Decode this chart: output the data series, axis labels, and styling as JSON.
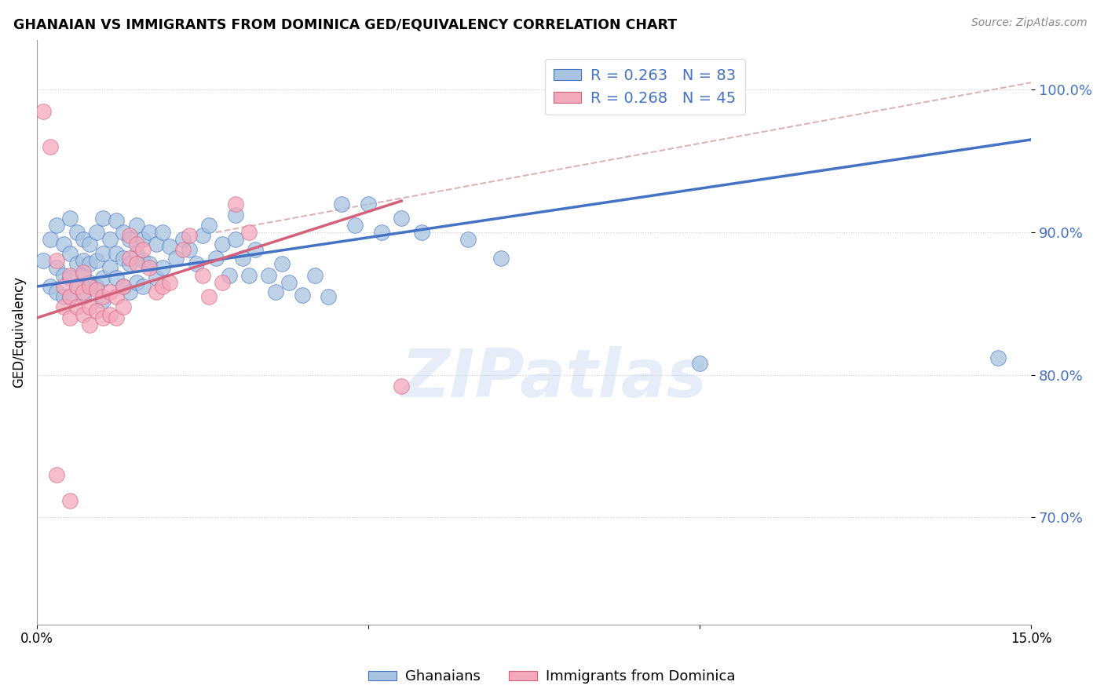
{
  "title": "GHANAIAN VS IMMIGRANTS FROM DOMINICA GED/EQUIVALENCY CORRELATION CHART",
  "source": "Source: ZipAtlas.com",
  "ylabel": "GED/Equivalency",
  "xlim": [
    0.0,
    0.15
  ],
  "ylim": [
    0.625,
    1.035
  ],
  "watermark": "ZIPatlas",
  "blue_color": "#a8c4e0",
  "pink_color": "#f4a8bc",
  "blue_line_color": "#4472c4",
  "pink_line_color": "#d4607a",
  "dashed_color": "#d4a0a8",
  "blue_line": {
    "x0": 0.0,
    "y0": 0.862,
    "x1": 0.15,
    "y1": 0.965
  },
  "pink_line": {
    "x0": 0.0,
    "y0": 0.84,
    "x1": 0.055,
    "y1": 0.922
  },
  "dashed_line": {
    "x0": 0.027,
    "y0": 0.9,
    "x1": 0.15,
    "y1": 1.005
  },
  "scatter_blue": [
    [
      0.001,
      0.88
    ],
    [
      0.002,
      0.895
    ],
    [
      0.002,
      0.862
    ],
    [
      0.003,
      0.905
    ],
    [
      0.003,
      0.875
    ],
    [
      0.003,
      0.858
    ],
    [
      0.004,
      0.892
    ],
    [
      0.004,
      0.87
    ],
    [
      0.004,
      0.855
    ],
    [
      0.005,
      0.91
    ],
    [
      0.005,
      0.885
    ],
    [
      0.005,
      0.868
    ],
    [
      0.005,
      0.855
    ],
    [
      0.006,
      0.9
    ],
    [
      0.006,
      0.878
    ],
    [
      0.006,
      0.862
    ],
    [
      0.007,
      0.895
    ],
    [
      0.007,
      0.88
    ],
    [
      0.007,
      0.87
    ],
    [
      0.007,
      0.855
    ],
    [
      0.008,
      0.892
    ],
    [
      0.008,
      0.878
    ],
    [
      0.008,
      0.865
    ],
    [
      0.009,
      0.9
    ],
    [
      0.009,
      0.88
    ],
    [
      0.009,
      0.862
    ],
    [
      0.01,
      0.91
    ],
    [
      0.01,
      0.885
    ],
    [
      0.01,
      0.868
    ],
    [
      0.01,
      0.852
    ],
    [
      0.011,
      0.895
    ],
    [
      0.011,
      0.875
    ],
    [
      0.012,
      0.908
    ],
    [
      0.012,
      0.885
    ],
    [
      0.012,
      0.868
    ],
    [
      0.013,
      0.9
    ],
    [
      0.013,
      0.882
    ],
    [
      0.013,
      0.862
    ],
    [
      0.014,
      0.895
    ],
    [
      0.014,
      0.878
    ],
    [
      0.014,
      0.858
    ],
    [
      0.015,
      0.905
    ],
    [
      0.015,
      0.885
    ],
    [
      0.015,
      0.865
    ],
    [
      0.016,
      0.895
    ],
    [
      0.016,
      0.88
    ],
    [
      0.016,
      0.862
    ],
    [
      0.017,
      0.9
    ],
    [
      0.017,
      0.878
    ],
    [
      0.018,
      0.892
    ],
    [
      0.018,
      0.868
    ],
    [
      0.019,
      0.9
    ],
    [
      0.019,
      0.875
    ],
    [
      0.02,
      0.89
    ],
    [
      0.021,
      0.882
    ],
    [
      0.022,
      0.895
    ],
    [
      0.023,
      0.888
    ],
    [
      0.024,
      0.878
    ],
    [
      0.025,
      0.898
    ],
    [
      0.026,
      0.905
    ],
    [
      0.027,
      0.882
    ],
    [
      0.028,
      0.892
    ],
    [
      0.029,
      0.87
    ],
    [
      0.03,
      0.912
    ],
    [
      0.03,
      0.895
    ],
    [
      0.031,
      0.882
    ],
    [
      0.032,
      0.87
    ],
    [
      0.033,
      0.888
    ],
    [
      0.035,
      0.87
    ],
    [
      0.036,
      0.858
    ],
    [
      0.037,
      0.878
    ],
    [
      0.038,
      0.865
    ],
    [
      0.04,
      0.856
    ],
    [
      0.042,
      0.87
    ],
    [
      0.044,
      0.855
    ],
    [
      0.046,
      0.92
    ],
    [
      0.048,
      0.905
    ],
    [
      0.05,
      0.92
    ],
    [
      0.052,
      0.9
    ],
    [
      0.055,
      0.91
    ],
    [
      0.058,
      0.9
    ],
    [
      0.065,
      0.895
    ],
    [
      0.07,
      0.882
    ],
    [
      0.1,
      0.808
    ],
    [
      0.145,
      0.812
    ]
  ],
  "scatter_pink": [
    [
      0.001,
      0.985
    ],
    [
      0.002,
      0.96
    ],
    [
      0.003,
      0.88
    ],
    [
      0.004,
      0.862
    ],
    [
      0.004,
      0.848
    ],
    [
      0.005,
      0.87
    ],
    [
      0.005,
      0.855
    ],
    [
      0.005,
      0.84
    ],
    [
      0.006,
      0.862
    ],
    [
      0.006,
      0.848
    ],
    [
      0.007,
      0.872
    ],
    [
      0.007,
      0.858
    ],
    [
      0.007,
      0.842
    ],
    [
      0.008,
      0.862
    ],
    [
      0.008,
      0.848
    ],
    [
      0.008,
      0.835
    ],
    [
      0.009,
      0.86
    ],
    [
      0.009,
      0.845
    ],
    [
      0.01,
      0.855
    ],
    [
      0.01,
      0.84
    ],
    [
      0.011,
      0.858
    ],
    [
      0.011,
      0.842
    ],
    [
      0.012,
      0.855
    ],
    [
      0.012,
      0.84
    ],
    [
      0.013,
      0.862
    ],
    [
      0.013,
      0.848
    ],
    [
      0.014,
      0.898
    ],
    [
      0.014,
      0.882
    ],
    [
      0.015,
      0.892
    ],
    [
      0.015,
      0.878
    ],
    [
      0.016,
      0.888
    ],
    [
      0.017,
      0.875
    ],
    [
      0.018,
      0.858
    ],
    [
      0.019,
      0.862
    ],
    [
      0.02,
      0.865
    ],
    [
      0.022,
      0.888
    ],
    [
      0.023,
      0.898
    ],
    [
      0.025,
      0.87
    ],
    [
      0.026,
      0.855
    ],
    [
      0.028,
      0.865
    ],
    [
      0.03,
      0.92
    ],
    [
      0.032,
      0.9
    ],
    [
      0.055,
      0.792
    ],
    [
      0.003,
      0.73
    ],
    [
      0.005,
      0.712
    ]
  ],
  "ytick_positions": [
    0.7,
    0.8,
    0.9,
    1.0
  ],
  "ytick_labels": [
    "70.0%",
    "80.0%",
    "90.0%",
    "100.0%"
  ]
}
